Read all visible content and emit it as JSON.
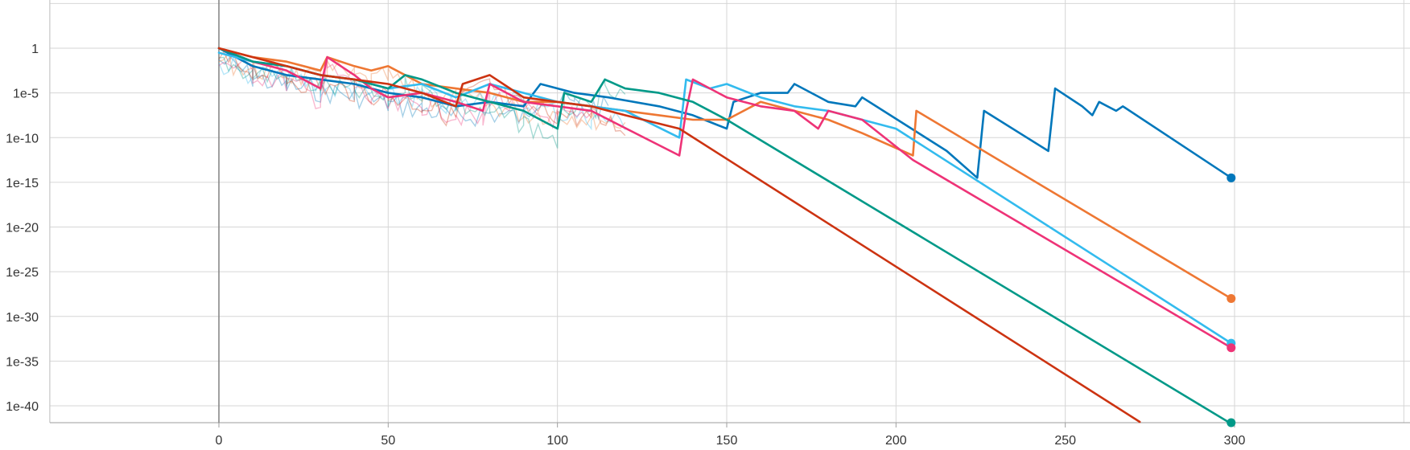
{
  "chart_data": {
    "type": "line",
    "title": "",
    "xlabel": "",
    "ylabel": "",
    "y_scale": "log",
    "xlim": [
      -50,
      350
    ],
    "ylim": [
      "1e-42",
      "1e5"
    ],
    "grid": true,
    "legend": "none",
    "x_ticks": [
      {
        "value": 0,
        "label": "0"
      },
      {
        "value": 50,
        "label": "50"
      },
      {
        "value": 100,
        "label": "100"
      },
      {
        "value": 150,
        "label": "150"
      },
      {
        "value": 200,
        "label": "200"
      },
      {
        "value": 250,
        "label": "250"
      },
      {
        "value": 300,
        "label": "300"
      }
    ],
    "y_ticks": [
      {
        "value": "1",
        "label": "1"
      },
      {
        "value": "1e-5",
        "label": "1e-5"
      },
      {
        "value": "1e-10",
        "label": "1e-10"
      },
      {
        "value": "1e-15",
        "label": "1e-15"
      },
      {
        "value": "1e-20",
        "label": "1e-20"
      },
      {
        "value": "1e-25",
        "label": "1e-25"
      },
      {
        "value": "1e-30",
        "label": "1e-30"
      },
      {
        "value": "1e-35",
        "label": "1e-35"
      },
      {
        "value": "1e-40",
        "label": "1e-40"
      }
    ],
    "series": [
      {
        "color": "#0077bb",
        "end_marker": true,
        "points": [
          [
            0,
            "1"
          ],
          [
            5,
            "1e-1"
          ],
          [
            10,
            "1e-2"
          ],
          [
            20,
            "1e-3"
          ],
          [
            30,
            "1e-3.5"
          ],
          [
            40,
            "1e-4"
          ],
          [
            50,
            "1e-5"
          ],
          [
            60,
            "1e-5.5"
          ],
          [
            70,
            "1e-6.5"
          ],
          [
            80,
            "1e-6"
          ],
          [
            90,
            "1e-6.5"
          ],
          [
            95,
            "1e-4"
          ],
          [
            105,
            "1e-5"
          ],
          [
            115,
            "1e-5.5"
          ],
          [
            130,
            "1e-6.5"
          ],
          [
            140,
            "1e-7.5"
          ],
          [
            150,
            "1e-9"
          ],
          [
            152,
            "1e-6"
          ],
          [
            160,
            "1e-5"
          ],
          [
            168,
            "1e-5"
          ],
          [
            170,
            "1e-4"
          ],
          [
            180,
            "1e-6"
          ],
          [
            188,
            "1e-6.5"
          ],
          [
            190,
            "1e-5.5"
          ],
          [
            215,
            "1e-11.5"
          ],
          [
            224,
            "1e-14.5"
          ],
          [
            226,
            "1e-7"
          ],
          [
            245,
            "1e-11.5"
          ],
          [
            247,
            "1e-4.5"
          ],
          [
            255,
            "1e-6.5"
          ],
          [
            258,
            "1e-7.5"
          ],
          [
            260,
            "1e-6"
          ],
          [
            265,
            "1e-7"
          ],
          [
            267,
            "1e-6.5"
          ],
          [
            299,
            "1e-14.5"
          ]
        ]
      },
      {
        "color": "#ee7733",
        "end_marker": true,
        "points": [
          [
            0,
            "1"
          ],
          [
            10,
            "1e-1"
          ],
          [
            20,
            "1e-1.5"
          ],
          [
            30,
            "1e-2.5"
          ],
          [
            32,
            "1e-1"
          ],
          [
            40,
            "1e-2"
          ],
          [
            45,
            "1e-2.5"
          ],
          [
            50,
            "1e-2"
          ],
          [
            60,
            "1e-4"
          ],
          [
            70,
            "1e-4.5"
          ],
          [
            80,
            "1e-5"
          ],
          [
            90,
            "1e-6"
          ],
          [
            100,
            "1e-6"
          ],
          [
            110,
            "1e-6.5"
          ],
          [
            120,
            "1e-7"
          ],
          [
            130,
            "1e-7.5"
          ],
          [
            140,
            "1e-8"
          ],
          [
            150,
            "1e-8"
          ],
          [
            160,
            "1e-6"
          ],
          [
            170,
            "1e-7"
          ],
          [
            180,
            "1e-8"
          ],
          [
            190,
            "1e-9.5"
          ],
          [
            205,
            "1e-12"
          ],
          [
            206,
            "1e-7"
          ],
          [
            299,
            "1e-28"
          ]
        ]
      },
      {
        "color": "#33bbee",
        "end_marker": true,
        "points": [
          [
            0,
            "1e-0.5"
          ],
          [
            10,
            "1e-1.5"
          ],
          [
            20,
            "1e-2"
          ],
          [
            30,
            "1e-3"
          ],
          [
            40,
            "1e-3.5"
          ],
          [
            50,
            "1e-4.5"
          ],
          [
            60,
            "1e-4"
          ],
          [
            70,
            "1e-5.5"
          ],
          [
            80,
            "1e-4"
          ],
          [
            90,
            "1e-5"
          ],
          [
            100,
            "1e-6"
          ],
          [
            110,
            "1e-6.5"
          ],
          [
            120,
            "1e-7"
          ],
          [
            136,
            "1e-10"
          ],
          [
            138,
            "1e-3.5"
          ],
          [
            145,
            "1e-4.5"
          ],
          [
            150,
            "1e-4"
          ],
          [
            160,
            "1e-5.5"
          ],
          [
            170,
            "1e-6.5"
          ],
          [
            180,
            "1e-7"
          ],
          [
            190,
            "1e-8"
          ],
          [
            200,
            "1e-9"
          ],
          [
            299,
            "1e-33"
          ]
        ]
      },
      {
        "color": "#ee3377",
        "end_marker": true,
        "points": [
          [
            0,
            "1"
          ],
          [
            10,
            "1e-1.5"
          ],
          [
            20,
            "1e-2.5"
          ],
          [
            30,
            "1e-4.5"
          ],
          [
            32,
            "1e-1"
          ],
          [
            40,
            "1e-3"
          ],
          [
            45,
            "1e-4.5"
          ],
          [
            50,
            "1e-5.5"
          ],
          [
            60,
            "1e-5"
          ],
          [
            70,
            "1e-6"
          ],
          [
            78,
            "1e-7"
          ],
          [
            80,
            "1e-4"
          ],
          [
            90,
            "1e-6"
          ],
          [
            100,
            "1e-6.5"
          ],
          [
            110,
            "1e-7"
          ],
          [
            136,
            "1e-12"
          ],
          [
            138,
            "1e-7"
          ],
          [
            140,
            "1e-3.5"
          ],
          [
            150,
            "1e-5.5"
          ],
          [
            160,
            "1e-6.5"
          ],
          [
            170,
            "1e-7"
          ],
          [
            177,
            "1e-9"
          ],
          [
            180,
            "1e-7"
          ],
          [
            190,
            "1e-8"
          ],
          [
            205,
            "1e-12.5"
          ],
          [
            299,
            "1e-33.5"
          ]
        ]
      },
      {
        "color": "#009988",
        "end_marker": true,
        "points": [
          [
            0,
            "1"
          ],
          [
            10,
            "1e-1.5"
          ],
          [
            20,
            "1e-2"
          ],
          [
            30,
            "1e-3"
          ],
          [
            40,
            "1e-3.5"
          ],
          [
            50,
            "1e-4.5"
          ],
          [
            55,
            "1e-3"
          ],
          [
            60,
            "1e-3.5"
          ],
          [
            70,
            "1e-5"
          ],
          [
            80,
            "1e-6"
          ],
          [
            90,
            "1e-7"
          ],
          [
            100,
            "1e-9"
          ],
          [
            102,
            "1e-5"
          ],
          [
            110,
            "1e-6"
          ],
          [
            114,
            "1e-3.5"
          ],
          [
            120,
            "1e-4.5"
          ],
          [
            130,
            "1e-5"
          ],
          [
            140,
            "1e-6"
          ],
          [
            150,
            "1e-8"
          ],
          [
            299,
            "1e-42"
          ]
        ]
      },
      {
        "color": "#cc3311",
        "end_marker": false,
        "points": [
          [
            0,
            "1"
          ],
          [
            10,
            "1e-1"
          ],
          [
            20,
            "1e-2"
          ],
          [
            30,
            "1e-3"
          ],
          [
            40,
            "1e-3.5"
          ],
          [
            50,
            "1e-4"
          ],
          [
            60,
            "1e-5"
          ],
          [
            70,
            "1e-6.5"
          ],
          [
            72,
            "1e-4"
          ],
          [
            80,
            "1e-3"
          ],
          [
            90,
            "1e-5.5"
          ],
          [
            100,
            "1e-6"
          ],
          [
            110,
            "1e-6.5"
          ],
          [
            120,
            "1e-7.5"
          ],
          [
            136,
            "1e-9"
          ],
          [
            272,
            "1e-41.8"
          ]
        ]
      }
    ]
  }
}
